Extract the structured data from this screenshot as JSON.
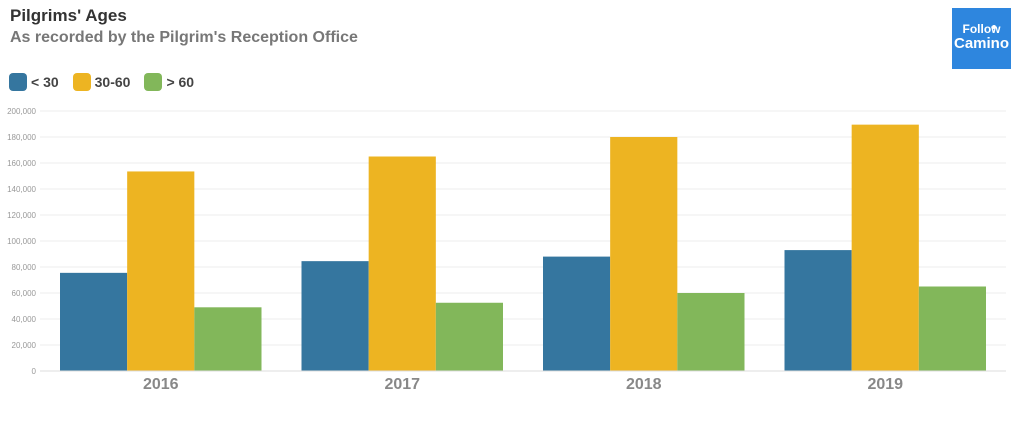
{
  "chart_data": {
    "type": "bar",
    "title": "Pilgrims' Ages",
    "subtitle": "As recorded by the Pilgrim's Reception Office",
    "categories": [
      "2016",
      "2017",
      "2018",
      "2019"
    ],
    "series": [
      {
        "name": "< 30",
        "color": "#35769f",
        "values": [
          75500,
          84500,
          88000,
          93000
        ]
      },
      {
        "name": "30-60",
        "color": "#edb422",
        "values": [
          153500,
          165000,
          180000,
          189500
        ]
      },
      {
        "name": "> 60",
        "color": "#82b75a",
        "values": [
          49000,
          52500,
          60000,
          65000
        ]
      }
    ],
    "ylim": [
      0,
      200000
    ],
    "yticks": [
      "0",
      "20,000",
      "40,000",
      "60,000",
      "80,000",
      "100,000",
      "120,000",
      "140,000",
      "160,000",
      "180,000",
      "200,000"
    ],
    "grid": true,
    "legend_position": "top-left"
  },
  "logo": {
    "line1": "Follow",
    "line2": "Camino",
    "icon": "follow-the-camino-logo"
  }
}
